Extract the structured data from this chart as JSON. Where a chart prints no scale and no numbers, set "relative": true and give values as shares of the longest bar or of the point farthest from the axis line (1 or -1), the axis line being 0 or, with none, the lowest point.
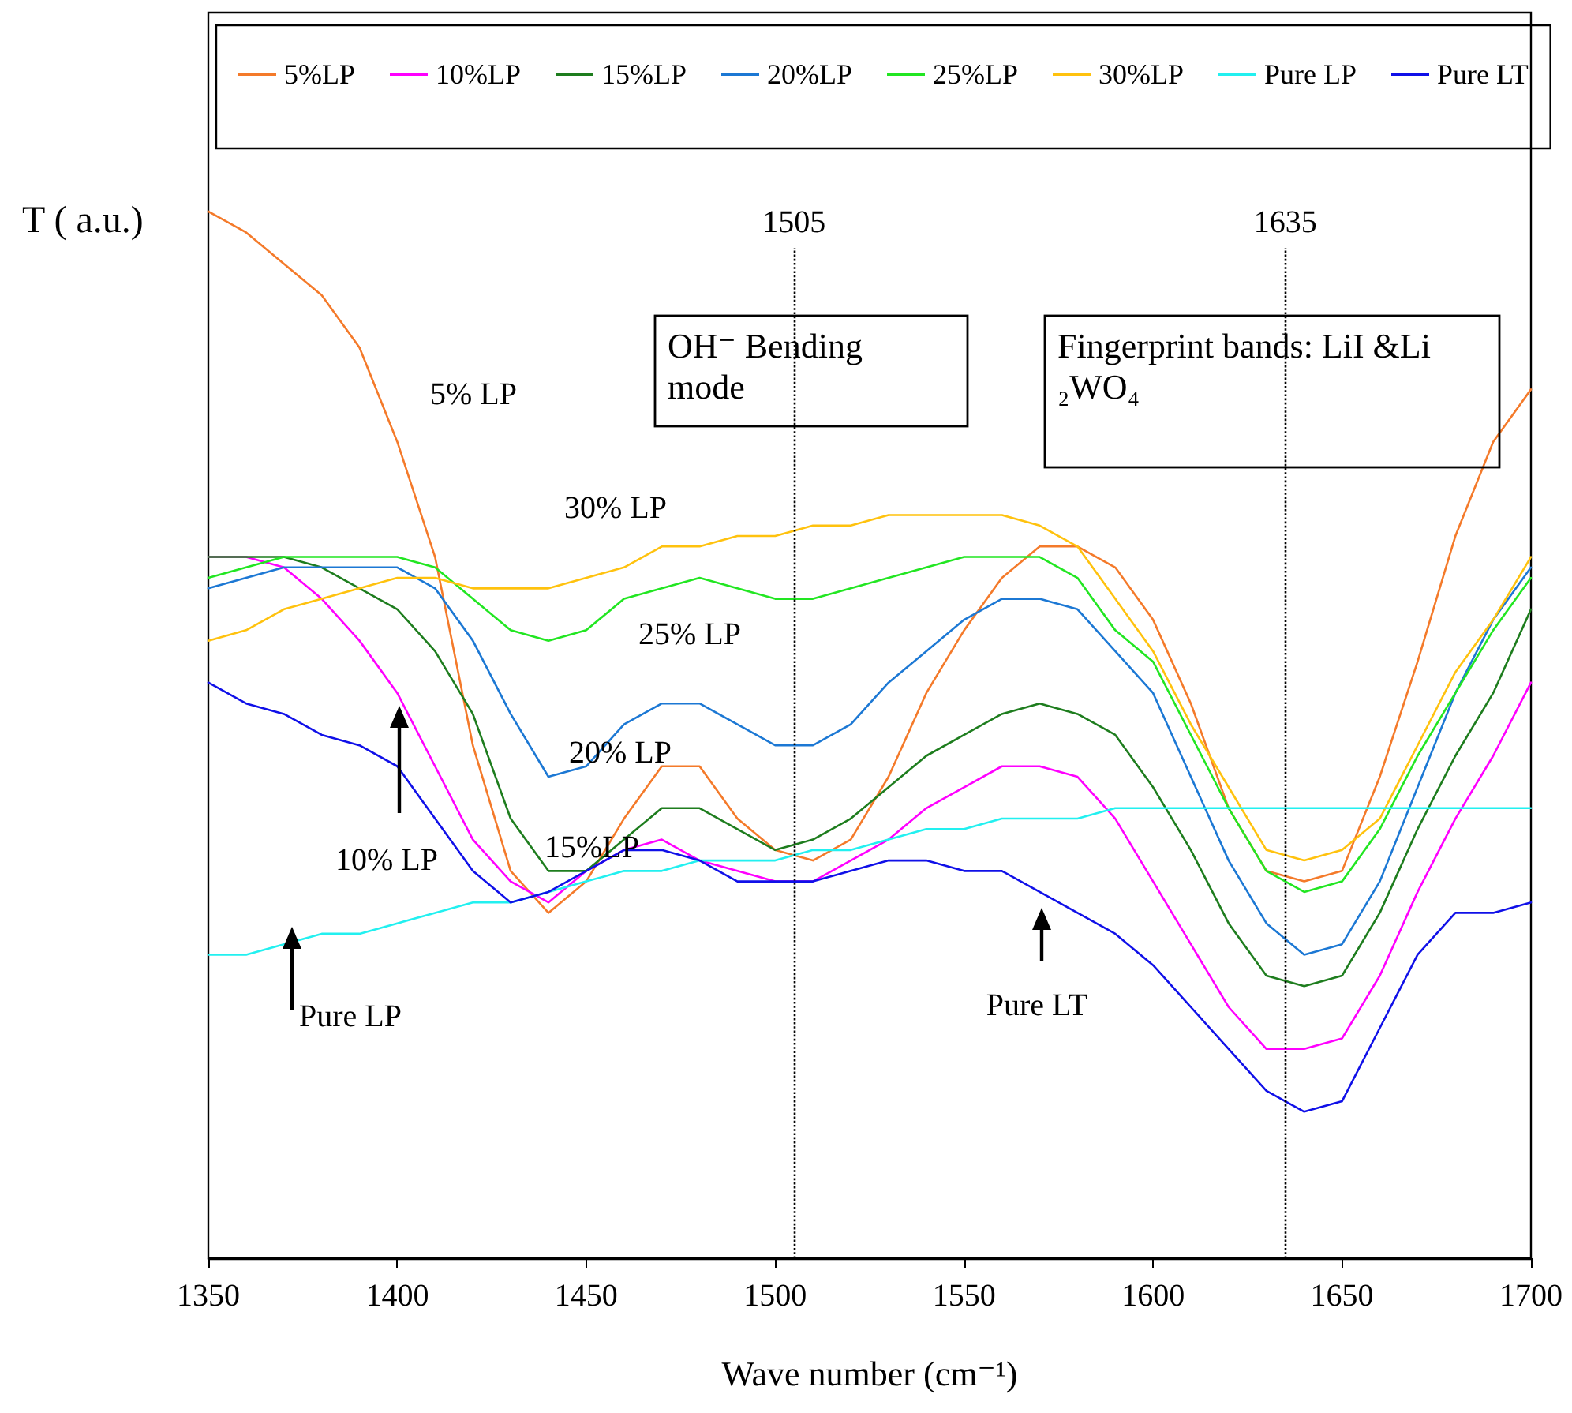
{
  "chart_data": {
    "type": "line",
    "relative": true,
    "xlabel": "Wave number (cm⁻¹)",
    "ylabel": "T ( a.u.)",
    "x": [
      1350,
      1360,
      1370,
      1380,
      1390,
      1400,
      1410,
      1420,
      1430,
      1440,
      1450,
      1460,
      1470,
      1480,
      1490,
      1500,
      1510,
      1520,
      1530,
      1540,
      1550,
      1560,
      1570,
      1580,
      1590,
      1600,
      1610,
      1620,
      1630,
      1640,
      1650,
      1660,
      1670,
      1680,
      1690,
      1700
    ],
    "xlim": [
      1350,
      1700
    ],
    "xticks": [
      1350,
      1400,
      1450,
      1500,
      1550,
      1600,
      1650,
      1700
    ],
    "grid": false,
    "legend": "top",
    "marker": "none",
    "line_style": "solid",
    "series": [
      {
        "name": "5%LP",
        "color": "#f47a2a",
        "values": [
          1.0,
          0.98,
          0.95,
          0.92,
          0.87,
          0.78,
          0.67,
          0.49,
          0.37,
          0.33,
          0.36,
          0.42,
          0.47,
          0.47,
          0.42,
          0.39,
          0.38,
          0.4,
          0.46,
          0.54,
          0.6,
          0.65,
          0.68,
          0.68,
          0.66,
          0.61,
          0.53,
          0.43,
          0.37,
          0.36,
          0.37,
          0.46,
          0.57,
          0.69,
          0.78,
          0.83
        ]
      },
      {
        "name": "10%LP",
        "color": "#ff00ff",
        "values": [
          0.67,
          0.67,
          0.66,
          0.63,
          0.59,
          0.54,
          0.47,
          0.4,
          0.36,
          0.34,
          0.37,
          0.39,
          0.4,
          0.38,
          0.37,
          0.36,
          0.36,
          0.38,
          0.4,
          0.43,
          0.45,
          0.47,
          0.47,
          0.46,
          0.42,
          0.36,
          0.3,
          0.24,
          0.2,
          0.2,
          0.21,
          0.27,
          0.35,
          0.42,
          0.48,
          0.55
        ]
      },
      {
        "name": "15%LP",
        "color": "#1e7d1e",
        "values": [
          0.67,
          0.67,
          0.67,
          0.66,
          0.64,
          0.62,
          0.58,
          0.52,
          0.42,
          0.37,
          0.37,
          0.4,
          0.43,
          0.43,
          0.41,
          0.39,
          0.4,
          0.42,
          0.45,
          0.48,
          0.5,
          0.52,
          0.53,
          0.52,
          0.5,
          0.45,
          0.39,
          0.32,
          0.27,
          0.26,
          0.27,
          0.33,
          0.41,
          0.48,
          0.54,
          0.62
        ]
      },
      {
        "name": "20%LP",
        "color": "#1c78d4",
        "values": [
          0.64,
          0.65,
          0.66,
          0.66,
          0.66,
          0.66,
          0.64,
          0.59,
          0.52,
          0.46,
          0.47,
          0.51,
          0.53,
          0.53,
          0.51,
          0.49,
          0.49,
          0.51,
          0.55,
          0.58,
          0.61,
          0.63,
          0.63,
          0.62,
          0.58,
          0.54,
          0.46,
          0.38,
          0.32,
          0.29,
          0.3,
          0.36,
          0.45,
          0.54,
          0.61,
          0.66
        ]
      },
      {
        "name": "25%LP",
        "color": "#22e622",
        "values": [
          0.65,
          0.66,
          0.67,
          0.67,
          0.67,
          0.67,
          0.66,
          0.63,
          0.6,
          0.59,
          0.6,
          0.63,
          0.64,
          0.65,
          0.64,
          0.63,
          0.63,
          0.64,
          0.65,
          0.66,
          0.67,
          0.67,
          0.67,
          0.65,
          0.6,
          0.57,
          0.5,
          0.43,
          0.37,
          0.35,
          0.36,
          0.41,
          0.48,
          0.54,
          0.6,
          0.65
        ]
      },
      {
        "name": "30%LP",
        "color": "#ffc20e",
        "values": [
          0.59,
          0.6,
          0.62,
          0.63,
          0.64,
          0.65,
          0.65,
          0.64,
          0.64,
          0.64,
          0.65,
          0.66,
          0.68,
          0.68,
          0.69,
          0.69,
          0.7,
          0.7,
          0.71,
          0.71,
          0.71,
          0.71,
          0.7,
          0.68,
          0.63,
          0.58,
          0.51,
          0.45,
          0.39,
          0.38,
          0.39,
          0.42,
          0.49,
          0.56,
          0.61,
          0.67
        ]
      },
      {
        "name": "Pure LP",
        "color": "#22f0f0",
        "values": [
          0.29,
          0.29,
          0.3,
          0.31,
          0.31,
          0.32,
          0.33,
          0.34,
          0.34,
          0.35,
          0.36,
          0.37,
          0.37,
          0.38,
          0.38,
          0.38,
          0.39,
          0.39,
          0.4,
          0.41,
          0.41,
          0.42,
          0.42,
          0.42,
          0.43,
          0.43,
          0.43,
          0.43,
          0.43,
          0.43,
          0.43,
          0.43,
          0.43,
          0.43,
          0.43,
          0.43
        ]
      },
      {
        "name": "Pure LT",
        "color": "#1010e8",
        "values": [
          0.55,
          0.53,
          0.52,
          0.5,
          0.49,
          0.47,
          0.42,
          0.37,
          0.34,
          0.35,
          0.37,
          0.39,
          0.39,
          0.38,
          0.36,
          0.36,
          0.36,
          0.37,
          0.38,
          0.38,
          0.37,
          0.37,
          0.35,
          0.33,
          0.31,
          0.28,
          0.24,
          0.2,
          0.16,
          0.14,
          0.15,
          0.22,
          0.29,
          0.33,
          0.33,
          0.34
        ]
      }
    ],
    "ref_lines": [
      {
        "axis": "x",
        "value": 1505,
        "label": "1505",
        "line_style": "dotted",
        "color": "#000000"
      },
      {
        "axis": "x",
        "value": 1635,
        "label": "1635",
        "line_style": "dotted",
        "color": "#000000"
      }
    ],
    "annotations": [
      "5% LP",
      "30% LP",
      "25% LP",
      "20% LP",
      "15%LP",
      "10% LP",
      "Pure LP",
      "Pure LT",
      "OH⁻ Bending mode",
      "Fingerprint bands: LiI &Li₂WO₄"
    ]
  }
}
